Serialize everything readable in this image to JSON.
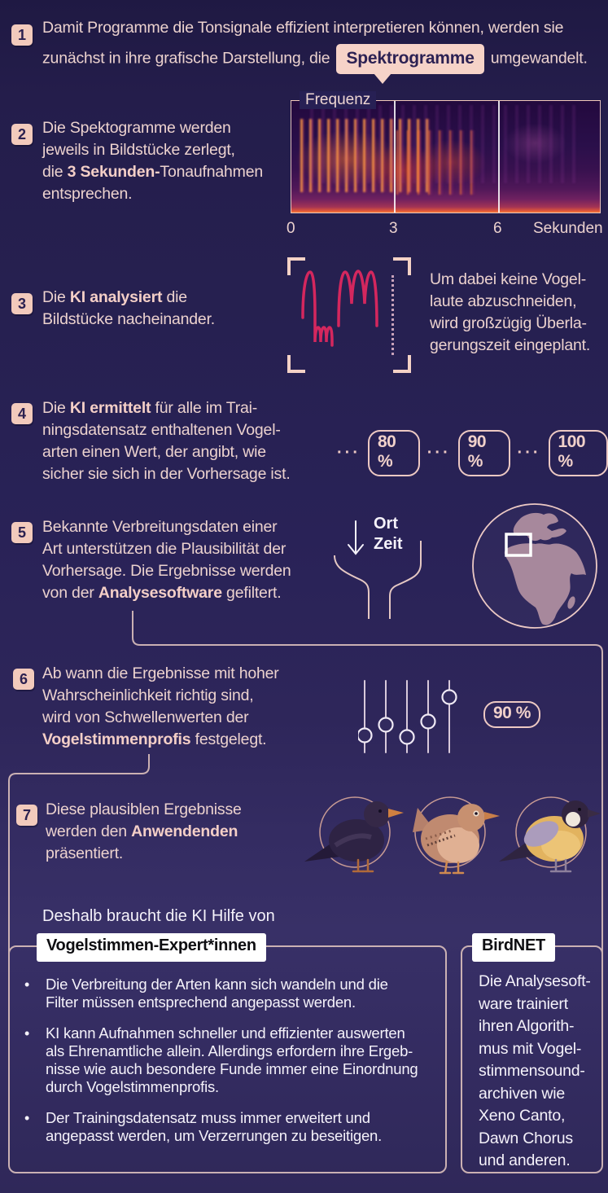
{
  "colors": {
    "background_top": "#1f1943",
    "background_bottom": "#2f2859",
    "text_pink": "#ecd2ce",
    "accent_pink": "#f2cabc",
    "bubble_bg": "#f6d3c8",
    "dark_ink": "#2b2150",
    "crimson_wave": "#d4275e",
    "connector_pink": "#dcc0bc",
    "white_text": "#f5f2fa",
    "globe_land": "#a7889c",
    "label_bg": "#ffffff"
  },
  "steps": [
    {
      "num": "1",
      "line1": "Damit Programme die Tonsignale effizient interpretieren können, werden sie",
      "line2_pre": "zunächst in ihre grafische Darstellung, die",
      "highlight": "Spektrogramme",
      "line2_post": "umgewandelt."
    },
    {
      "num": "2",
      "lines": [
        "Die Spektogramme werden",
        "jeweils in Bildstücke zerlegt,",
        [
          {
            "t": "die "
          },
          {
            "t": "3 Sekunden-",
            "b": 1
          },
          {
            "t": "Tonaufnahmen"
          }
        ],
        "entsprechen."
      ]
    },
    {
      "num": "3",
      "lines": [
        [
          {
            "t": "Die "
          },
          {
            "t": "KI analysiert",
            "b": 1
          },
          {
            "t": " die"
          }
        ],
        "Bildstücke nacheinander."
      ],
      "side": [
        "Um dabei keine Vogel-",
        "laute abzuschneiden,",
        "wird großzügig Überla-",
        "gerungszeit eingeplant."
      ]
    },
    {
      "num": "4",
      "lines": [
        [
          {
            "t": "Die "
          },
          {
            "t": "KI ermittelt",
            "b": 1
          },
          {
            "t": " für alle im Trai-"
          }
        ],
        "ningsdatensatz enthaltenen Vogel-",
        "arten einen Wert, der angibt, wie",
        "sicher sie sich in der Vorhersage ist."
      ]
    },
    {
      "num": "5",
      "lines": [
        "Bekannte Verbreitungsdaten einer",
        "Art unterstützen die Plausibilität der",
        "Vorhersage. Die Ergebnisse werden",
        [
          {
            "t": "von der "
          },
          {
            "t": "Analysesoftware",
            "b": 1
          },
          {
            "t": " gefiltert."
          }
        ]
      ]
    },
    {
      "num": "6",
      "lines": [
        "Ab wann die Ergebnisse mit hoher",
        "Wahrscheinlichkeit richtig sind,",
        "wird von Schwellenwerten der",
        [
          {
            "t": "Vogelstimmenprofis",
            "b": 1
          },
          {
            "t": " festgelegt."
          }
        ]
      ]
    },
    {
      "num": "7",
      "lines": [
        "Diese plausiblen Ergebnisse",
        [
          {
            "t": "werden den "
          },
          {
            "t": "Anwendenden",
            "b": 1
          }
        ],
        "präsentiert."
      ]
    }
  ],
  "spectrogram": {
    "freq_label": "Frequenz",
    "tick0": "0",
    "tick3": "3",
    "tick6": "6",
    "unit": "Sekunden"
  },
  "confidence": {
    "dots": "···",
    "badges": [
      "80 %",
      "90 %",
      "100 %"
    ]
  },
  "filter_labels": {
    "ort": "Ort",
    "zeit": "Zeit"
  },
  "threshold_badge": "90 %",
  "birds": [
    "blackbird",
    "wren",
    "great-tit"
  ],
  "closing_line": "Deshalb braucht die KI Hilfe von",
  "experts_box": {
    "label": "Vogelstimmen-Expert*innen",
    "marker": "•",
    "bullets": [
      [
        "Die Verbreitung der Arten kann sich wandeln und die",
        "Filter müssen entsprechend angepasst werden."
      ],
      [
        "KI kann Aufnahmen schneller und effizienter auswerten",
        "als Ehrenamtliche allein. Allerdings erfordern ihre Ergeb-",
        "nisse wie auch besondere Funde immer eine Einordnung",
        "durch Vogelstimmenprofis."
      ],
      [
        "Der Trainingsdatensatz muss immer erweitert und",
        "angepasst werden, um Verzerrungen zu beseitigen."
      ]
    ]
  },
  "birdnet_box": {
    "label": "BirdNET",
    "lines": [
      "Die Analysesoft-",
      "ware trainiert",
      "ihren Algorith-",
      "mus mit Vogel-",
      "stimmensound-",
      "archiven wie",
      "Xeno Canto,",
      "Dawn Chorus",
      "und anderen."
    ]
  }
}
